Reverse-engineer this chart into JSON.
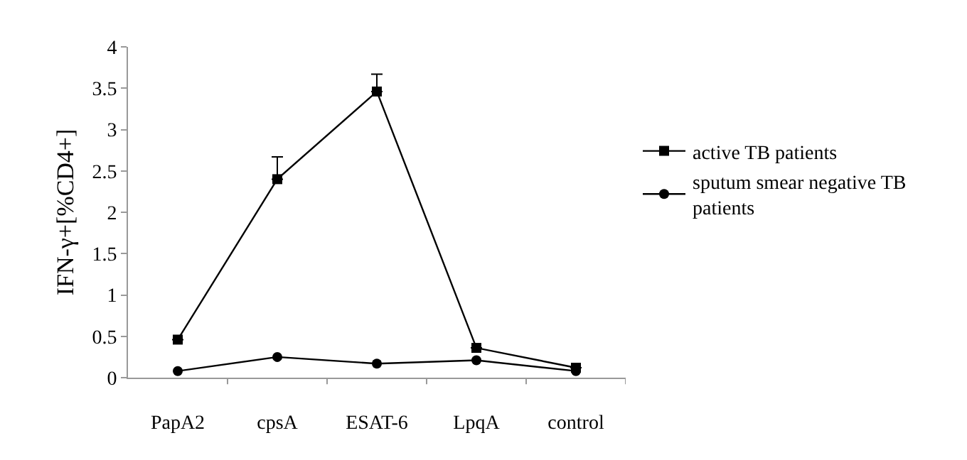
{
  "chart_data": {
    "type": "line",
    "ylabel": "IFN-γ+[%CD4+]",
    "categories": [
      "PapA2",
      "cpsA",
      "ESAT-6",
      "LpqA",
      "control"
    ],
    "series": [
      {
        "name": "active TB patients",
        "color": "#000000",
        "marker": "square",
        "values": [
          0.46,
          2.4,
          3.46,
          0.36,
          0.12
        ],
        "errors": [
          null,
          [
            2.4,
            2.67
          ],
          [
            3.46,
            3.67
          ],
          null,
          null
        ]
      },
      {
        "name": "sputum smear negative TB patients",
        "color": "#000000",
        "marker": "circle",
        "values": [
          0.08,
          0.25,
          0.17,
          0.21,
          0.08
        ]
      }
    ],
    "ylim": [
      0,
      4
    ],
    "yticks": [
      0,
      0.5,
      1,
      1.5,
      2,
      2.5,
      3,
      3.5,
      4
    ],
    "legend": "right",
    "line_style": "solid"
  }
}
